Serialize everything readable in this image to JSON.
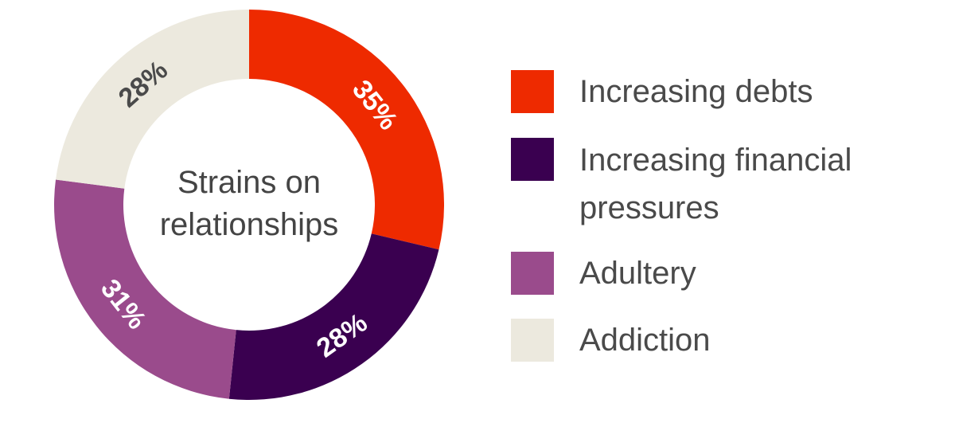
{
  "chart_data": {
    "type": "pie",
    "donut": true,
    "center_title": [
      "Strains on",
      "relationships"
    ],
    "slices": [
      {
        "label": "Increasing debts",
        "value": 35,
        "display": "35%",
        "color": "#ee2a00",
        "text_color": "#ffffff"
      },
      {
        "label": "Increasing financial pressures",
        "value": 28,
        "display": "28%",
        "color": "#3a0050",
        "text_color": "#ffffff"
      },
      {
        "label": "Adultery",
        "value": 31,
        "display": "31%",
        "color": "#9a4b8c",
        "text_color": "#ffffff"
      },
      {
        "label": "Addiction",
        "value": 28,
        "display": "28%",
        "color": "#ece9de",
        "text_color": "#4a4a4a"
      }
    ],
    "legend_placement": "right"
  },
  "legend": {
    "items": [
      {
        "lines": [
          "Increasing debts"
        ],
        "color": "#ee2a00"
      },
      {
        "lines": [
          "Increasing financial",
          "pressures"
        ],
        "color": "#3a0050"
      },
      {
        "lines": [
          "Adultery"
        ],
        "color": "#9a4b8c"
      },
      {
        "lines": [
          "Addiction"
        ],
        "color": "#ece9de"
      }
    ]
  }
}
